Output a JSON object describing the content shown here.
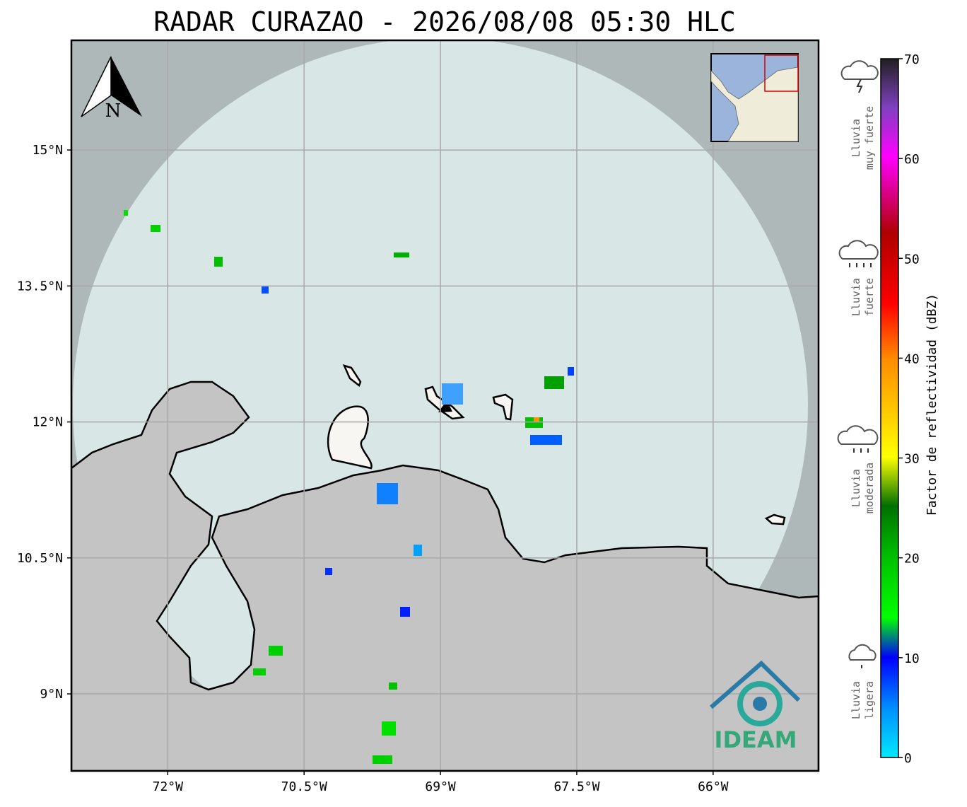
{
  "title": "RADAR CURAZAO - 2026/08/08 05:30 HLC",
  "map": {
    "compass": "N",
    "logo": "IDEAM",
    "xlim": [
      -73.06,
      -64.84
    ],
    "ylim": [
      8.15,
      16.21
    ],
    "xticks": [
      {
        "value": -72,
        "label": "72°W"
      },
      {
        "value": -70.5,
        "label": "70.5°W"
      },
      {
        "value": -69,
        "label": "69°W"
      },
      {
        "value": -67.5,
        "label": "67.5°W"
      },
      {
        "value": -66,
        "label": "66°W"
      }
    ],
    "yticks": [
      {
        "value": 9,
        "label": "9°N"
      },
      {
        "value": 10.5,
        "label": "10.5°N"
      },
      {
        "value": 12,
        "label": "12°N"
      },
      {
        "value": 13.5,
        "label": "13.5°N"
      },
      {
        "value": 15,
        "label": "15°N"
      }
    ]
  },
  "colorbar": {
    "label": "Factor de reflectividad (dBZ)",
    "lim": [
      0,
      70
    ],
    "ticks": [
      0,
      10,
      20,
      30,
      40,
      50,
      60,
      70
    ]
  },
  "legend": [
    {
      "lines": [
        "Lluvia",
        "muy fuerte"
      ]
    },
    {
      "lines": [
        "Lluvia",
        "fuerte"
      ]
    },
    {
      "lines": [
        "Lluvia",
        "moderada"
      ]
    },
    {
      "lines": [
        "Lluvia",
        "ligera"
      ]
    }
  ]
}
